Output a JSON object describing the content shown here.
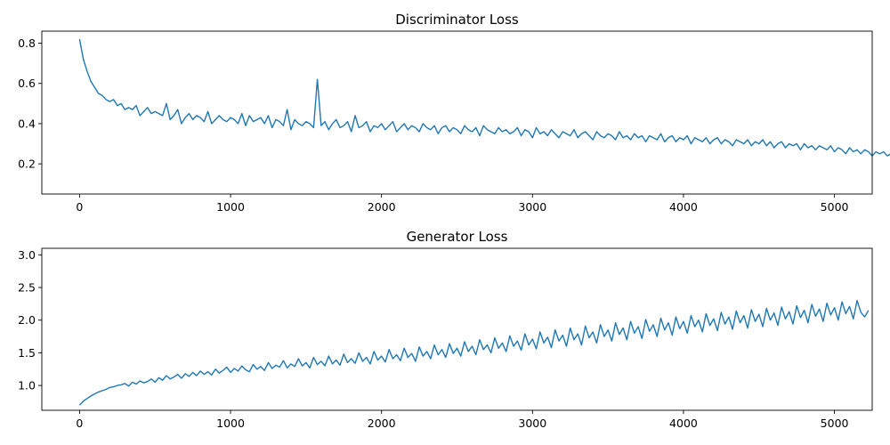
{
  "chart_data": [
    {
      "type": "line",
      "title": "Discriminator Loss",
      "xlabel": "",
      "ylabel": "",
      "xlim": [
        -250,
        5250
      ],
      "ylim": [
        0.05,
        0.86
      ],
      "x_ticks": [
        0,
        1000,
        2000,
        3000,
        4000,
        5000
      ],
      "x_tick_labels": [
        "0",
        "1000",
        "2000",
        "3000",
        "4000",
        "5000"
      ],
      "y_ticks": [
        0.2,
        0.4,
        0.6,
        0.8
      ],
      "y_tick_labels": [
        "0.2",
        "0.4",
        "0.6",
        "0.8"
      ],
      "grid": false,
      "legend": "none",
      "series": [
        {
          "color": "#1f77b4",
          "x_start": 0,
          "x_step": 25,
          "values": [
            0.82,
            0.72,
            0.66,
            0.61,
            0.58,
            0.55,
            0.54,
            0.52,
            0.51,
            0.52,
            0.49,
            0.5,
            0.47,
            0.48,
            0.47,
            0.49,
            0.44,
            0.46,
            0.48,
            0.45,
            0.46,
            0.45,
            0.44,
            0.5,
            0.42,
            0.44,
            0.47,
            0.4,
            0.43,
            0.45,
            0.42,
            0.44,
            0.43,
            0.41,
            0.46,
            0.4,
            0.42,
            0.44,
            0.42,
            0.41,
            0.43,
            0.42,
            0.4,
            0.45,
            0.39,
            0.44,
            0.41,
            0.42,
            0.43,
            0.4,
            0.44,
            0.38,
            0.42,
            0.41,
            0.39,
            0.47,
            0.37,
            0.42,
            0.4,
            0.39,
            0.41,
            0.4,
            0.38,
            0.62,
            0.39,
            0.41,
            0.37,
            0.4,
            0.42,
            0.38,
            0.39,
            0.41,
            0.36,
            0.44,
            0.38,
            0.39,
            0.41,
            0.36,
            0.39,
            0.38,
            0.4,
            0.37,
            0.39,
            0.41,
            0.36,
            0.38,
            0.4,
            0.37,
            0.39,
            0.38,
            0.36,
            0.4,
            0.38,
            0.37,
            0.39,
            0.35,
            0.38,
            0.39,
            0.36,
            0.38,
            0.37,
            0.35,
            0.39,
            0.37,
            0.36,
            0.38,
            0.34,
            0.39,
            0.37,
            0.36,
            0.35,
            0.38,
            0.36,
            0.37,
            0.35,
            0.36,
            0.38,
            0.34,
            0.37,
            0.36,
            0.33,
            0.38,
            0.35,
            0.36,
            0.34,
            0.37,
            0.35,
            0.33,
            0.36,
            0.35,
            0.34,
            0.37,
            0.33,
            0.35,
            0.36,
            0.34,
            0.32,
            0.36,
            0.34,
            0.33,
            0.35,
            0.34,
            0.32,
            0.36,
            0.33,
            0.34,
            0.32,
            0.35,
            0.33,
            0.34,
            0.31,
            0.34,
            0.33,
            0.32,
            0.35,
            0.31,
            0.33,
            0.34,
            0.31,
            0.33,
            0.32,
            0.34,
            0.3,
            0.33,
            0.32,
            0.31,
            0.33,
            0.3,
            0.32,
            0.33,
            0.3,
            0.32,
            0.31,
            0.29,
            0.32,
            0.31,
            0.3,
            0.32,
            0.29,
            0.31,
            0.3,
            0.32,
            0.29,
            0.31,
            0.28,
            0.3,
            0.31,
            0.28,
            0.3,
            0.29,
            0.3,
            0.27,
            0.3,
            0.28,
            0.29,
            0.27,
            0.29,
            0.28,
            0.27,
            0.29,
            0.26,
            0.28,
            0.27,
            0.25,
            0.28,
            0.26,
            0.27,
            0.25,
            0.27,
            0.26,
            0.24,
            0.26,
            0.25,
            0.26,
            0.24,
            0.25,
            0.22,
            0.2
          ]
        }
      ]
    },
    {
      "type": "line",
      "title": "Generator Loss",
      "xlabel": "",
      "ylabel": "",
      "xlim": [
        -250,
        5250
      ],
      "ylim": [
        0.62,
        3.1
      ],
      "x_ticks": [
        0,
        1000,
        2000,
        3000,
        4000,
        5000
      ],
      "x_tick_labels": [
        "0",
        "1000",
        "2000",
        "3000",
        "4000",
        "5000"
      ],
      "y_ticks": [
        1.0,
        1.5,
        2.0,
        2.5,
        3.0
      ],
      "y_tick_labels": [
        "1.0",
        "1.5",
        "2.0",
        "2.5",
        "3.0"
      ],
      "grid": false,
      "legend": "none",
      "series": [
        {
          "color": "#1f77b4",
          "x_start": 0,
          "x_step": 25,
          "values": [
            0.7,
            0.76,
            0.8,
            0.84,
            0.87,
            0.9,
            0.92,
            0.94,
            0.97,
            0.98,
            1.0,
            1.01,
            1.03,
            0.99,
            1.05,
            1.02,
            1.07,
            1.04,
            1.06,
            1.1,
            1.05,
            1.12,
            1.08,
            1.15,
            1.1,
            1.13,
            1.17,
            1.11,
            1.18,
            1.14,
            1.2,
            1.15,
            1.22,
            1.17,
            1.21,
            1.16,
            1.25,
            1.19,
            1.23,
            1.28,
            1.2,
            1.26,
            1.22,
            1.3,
            1.24,
            1.21,
            1.32,
            1.25,
            1.29,
            1.23,
            1.35,
            1.26,
            1.31,
            1.28,
            1.38,
            1.27,
            1.33,
            1.29,
            1.41,
            1.3,
            1.35,
            1.27,
            1.43,
            1.32,
            1.37,
            1.3,
            1.45,
            1.33,
            1.39,
            1.31,
            1.48,
            1.35,
            1.41,
            1.34,
            1.5,
            1.37,
            1.43,
            1.33,
            1.52,
            1.39,
            1.45,
            1.36,
            1.55,
            1.41,
            1.47,
            1.38,
            1.57,
            1.43,
            1.49,
            1.37,
            1.59,
            1.45,
            1.52,
            1.41,
            1.62,
            1.47,
            1.55,
            1.43,
            1.64,
            1.49,
            1.57,
            1.45,
            1.67,
            1.52,
            1.6,
            1.47,
            1.7,
            1.55,
            1.62,
            1.5,
            1.73,
            1.57,
            1.65,
            1.52,
            1.76,
            1.6,
            1.68,
            1.54,
            1.79,
            1.62,
            1.71,
            1.56,
            1.82,
            1.65,
            1.74,
            1.58,
            1.85,
            1.68,
            1.77,
            1.6,
            1.88,
            1.7,
            1.79,
            1.62,
            1.91,
            1.73,
            1.82,
            1.65,
            1.93,
            1.75,
            1.85,
            1.68,
            1.96,
            1.78,
            1.88,
            1.7,
            1.98,
            1.8,
            1.9,
            1.72,
            2.01,
            1.83,
            1.93,
            1.75,
            2.03,
            1.85,
            1.96,
            1.77,
            2.05,
            1.87,
            1.98,
            1.8,
            2.07,
            1.9,
            2.0,
            1.82,
            2.1,
            1.92,
            2.02,
            1.84,
            2.12,
            1.94,
            2.05,
            1.86,
            2.14,
            1.96,
            2.07,
            1.88,
            2.16,
            1.98,
            2.09,
            1.9,
            2.18,
            2.0,
            2.11,
            1.92,
            2.2,
            2.02,
            2.13,
            1.94,
            2.22,
            2.04,
            2.15,
            1.96,
            2.24,
            2.06,
            2.17,
            1.98,
            2.26,
            2.08,
            2.19,
            2.0,
            2.28,
            2.1,
            2.21,
            2.02,
            2.3,
            2.12,
            2.05,
            2.15
          ]
        }
      ]
    }
  ]
}
